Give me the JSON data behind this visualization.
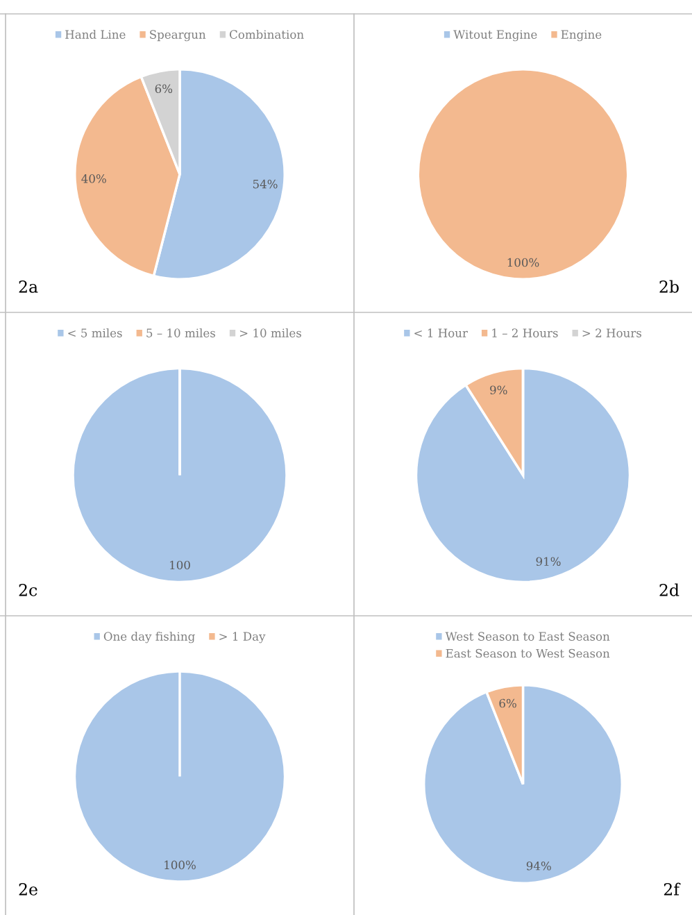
{
  "chart_data": [
    {
      "type": "pie",
      "categories": [
        "Hand Line",
        "Speargun",
        "Combination"
      ],
      "values": [
        54,
        40,
        6
      ],
      "colors": [
        "#a9c6e8",
        "#f3b98f",
        "#d3d3d3"
      ],
      "value_labels": [
        "54%",
        "40%",
        "6%"
      ],
      "legend": "top",
      "annotations": [
        "2a"
      ]
    },
    {
      "type": "pie",
      "categories": [
        "Witout Engine",
        "Engine"
      ],
      "values": [
        0,
        100
      ],
      "colors": [
        "#a9c6e8",
        "#f3b98f"
      ],
      "value_labels": [
        null,
        "100%"
      ],
      "legend": "top",
      "annotations": [
        "2b"
      ]
    },
    {
      "type": "pie",
      "categories": [
        "< 5 miles",
        "5 – 10 miles",
        "> 10 miles"
      ],
      "values": [
        100,
        0,
        0
      ],
      "colors": [
        "#a9c6e8",
        "#f3b98f",
        "#d3d3d3"
      ],
      "value_labels": [
        "100",
        null,
        null
      ],
      "legend": "top",
      "annotations": [
        "2c"
      ]
    },
    {
      "type": "pie",
      "categories": [
        "< 1 Hour",
        "1 – 2 Hours",
        "> 2 Hours"
      ],
      "values": [
        91,
        9,
        0
      ],
      "colors": [
        "#a9c6e8",
        "#f3b98f",
        "#d3d3d3"
      ],
      "value_labels": [
        "91%",
        "9%",
        null
      ],
      "legend": "top",
      "annotations": [
        "2d"
      ]
    },
    {
      "type": "pie",
      "categories": [
        "One day fishing",
        "> 1 Day"
      ],
      "values": [
        100,
        0
      ],
      "colors": [
        "#a9c6e8",
        "#f3b98f"
      ],
      "value_labels": [
        "100%",
        null
      ],
      "legend": "top",
      "annotations": [
        "2e"
      ]
    },
    {
      "type": "pie",
      "categories": [
        "West Season to East Season",
        "East Season to West Season"
      ],
      "values": [
        94,
        6
      ],
      "colors": [
        "#a9c6e8",
        "#f3b98f"
      ],
      "value_labels": [
        "94%",
        "6%"
      ],
      "legend": "top",
      "annotations": [
        "2f"
      ]
    }
  ]
}
